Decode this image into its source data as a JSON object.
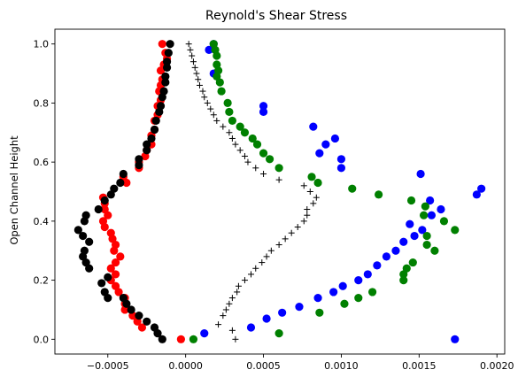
{
  "chart_data": {
    "type": "scatter",
    "title": "Reynold's Shear Stress",
    "xlabel": "",
    "ylabel": "Open Channel Height",
    "xlim": [
      -0.00084,
      0.00205
    ],
    "ylim": [
      -0.05,
      1.05
    ],
    "xticks": [
      -0.0005,
      0.0,
      0.0005,
      0.001,
      0.0015,
      0.002
    ],
    "xtick_labels": [
      "−0.0005",
      "0.0000",
      "0.0005",
      "0.0010",
      "0.0015",
      "0.0020"
    ],
    "yticks": [
      0.0,
      0.2,
      0.4,
      0.6,
      0.8,
      1.0
    ],
    "ytick_labels": [
      "0.0",
      "0.2",
      "0.4",
      "0.6",
      "0.8",
      "1.0"
    ],
    "grid": false,
    "legend": "none",
    "series": [
      {
        "color": "#0000ff",
        "marker": "circle",
        "points": [
          [
            0.00173,
            0.0
          ],
          [
            0.00012,
            0.02
          ],
          [
            0.00042,
            0.04
          ],
          [
            0.00052,
            0.07
          ],
          [
            0.00062,
            0.09
          ],
          [
            0.00073,
            0.11
          ],
          [
            0.00085,
            0.14
          ],
          [
            0.00095,
            0.16
          ],
          [
            0.00101,
            0.18
          ],
          [
            0.00111,
            0.2
          ],
          [
            0.00117,
            0.22
          ],
          [
            0.00123,
            0.25
          ],
          [
            0.00129,
            0.28
          ],
          [
            0.00135,
            0.3
          ],
          [
            0.0014,
            0.33
          ],
          [
            0.00147,
            0.35
          ],
          [
            0.00152,
            0.37
          ],
          [
            0.00144,
            0.39
          ],
          [
            0.00158,
            0.42
          ],
          [
            0.00164,
            0.44
          ],
          [
            0.00157,
            0.47
          ],
          [
            0.00187,
            0.49
          ],
          [
            0.0019,
            0.51
          ],
          [
            0.00151,
            0.56
          ],
          [
            0.001,
            0.58
          ],
          [
            0.001,
            0.61
          ],
          [
            0.00086,
            0.63
          ],
          [
            0.0009,
            0.66
          ],
          [
            0.00096,
            0.68
          ],
          [
            0.00082,
            0.72
          ],
          [
            0.0005,
            0.77
          ],
          [
            0.0005,
            0.79
          ],
          [
            0.00018,
            0.9
          ],
          [
            0.00015,
            0.98
          ],
          [
            0.00018,
            1.0
          ]
        ]
      },
      {
        "color": "#008000",
        "marker": "circle",
        "points": [
          [
            5e-05,
            0.0
          ],
          [
            0.0006,
            0.02
          ],
          [
            0.00086,
            0.09
          ],
          [
            0.00102,
            0.12
          ],
          [
            0.00111,
            0.14
          ],
          [
            0.0012,
            0.16
          ],
          [
            0.0014,
            0.2
          ],
          [
            0.0014,
            0.22
          ],
          [
            0.00142,
            0.24
          ],
          [
            0.00146,
            0.26
          ],
          [
            0.0016,
            0.3
          ],
          [
            0.00155,
            0.32
          ],
          [
            0.00155,
            0.35
          ],
          [
            0.00173,
            0.37
          ],
          [
            0.00166,
            0.4
          ],
          [
            0.00153,
            0.42
          ],
          [
            0.00154,
            0.45
          ],
          [
            0.00145,
            0.47
          ],
          [
            0.00124,
            0.49
          ],
          [
            0.00107,
            0.51
          ],
          [
            0.00085,
            0.53
          ],
          [
            0.00081,
            0.55
          ],
          [
            0.0006,
            0.58
          ],
          [
            0.00054,
            0.61
          ],
          [
            0.0005,
            0.63
          ],
          [
            0.00046,
            0.66
          ],
          [
            0.00043,
            0.68
          ],
          [
            0.00038,
            0.7
          ],
          [
            0.00035,
            0.72
          ],
          [
            0.0003,
            0.74
          ],
          [
            0.00028,
            0.77
          ],
          [
            0.00027,
            0.8
          ],
          [
            0.00023,
            0.84
          ],
          [
            0.00022,
            0.87
          ],
          [
            0.0002,
            0.89
          ],
          [
            0.00021,
            0.91
          ],
          [
            0.0002,
            0.93
          ],
          [
            0.0002,
            0.96
          ],
          [
            0.00019,
            0.98
          ],
          [
            0.00018,
            1.0
          ]
        ]
      },
      {
        "color": "#ff0000",
        "marker": "circle",
        "points": [
          [
            -3e-05,
            0.0
          ],
          [
            -0.00028,
            0.04
          ],
          [
            -0.00031,
            0.06
          ],
          [
            -0.00034,
            0.08
          ],
          [
            -0.00039,
            0.1
          ],
          [
            -0.00039,
            0.12
          ],
          [
            -0.00039,
            0.14
          ],
          [
            -0.00043,
            0.16
          ],
          [
            -0.00045,
            0.18
          ],
          [
            -0.00048,
            0.2
          ],
          [
            -0.00045,
            0.22
          ],
          [
            -0.00048,
            0.24
          ],
          [
            -0.00045,
            0.26
          ],
          [
            -0.00042,
            0.28
          ],
          [
            -0.00046,
            0.3
          ],
          [
            -0.00045,
            0.32
          ],
          [
            -0.00047,
            0.34
          ],
          [
            -0.00048,
            0.36
          ],
          [
            -0.00052,
            0.38
          ],
          [
            -0.00053,
            0.4
          ],
          [
            -0.0005,
            0.42
          ],
          [
            -0.00052,
            0.44
          ],
          [
            -0.00052,
            0.46
          ],
          [
            -0.00053,
            0.48
          ],
          [
            -0.00038,
            0.53
          ],
          [
            -0.0004,
            0.55
          ],
          [
            -0.0003,
            0.58
          ],
          [
            -0.0003,
            0.6
          ],
          [
            -0.00026,
            0.62
          ],
          [
            -0.00025,
            0.64
          ],
          [
            -0.00022,
            0.66
          ],
          [
            -0.00022,
            0.69
          ],
          [
            -0.0002,
            0.71
          ],
          [
            -0.0002,
            0.74
          ],
          [
            -0.00018,
            0.76
          ],
          [
            -0.00018,
            0.79
          ],
          [
            -0.00016,
            0.81
          ],
          [
            -0.00017,
            0.84
          ],
          [
            -0.00016,
            0.86
          ],
          [
            -0.00015,
            0.88
          ],
          [
            -0.00016,
            0.91
          ],
          [
            -0.00014,
            0.93
          ],
          [
            -0.00012,
            0.95
          ],
          [
            -0.00013,
            0.97
          ],
          [
            -0.00015,
            1.0
          ]
        ]
      },
      {
        "color": "#000000",
        "marker": "circle",
        "points": [
          [
            -0.00015,
            0.0
          ],
          [
            -0.00018,
            0.02
          ],
          [
            -0.0002,
            0.04
          ],
          [
            -0.00025,
            0.06
          ],
          [
            -0.0003,
            0.08
          ],
          [
            -0.00035,
            0.1
          ],
          [
            -0.00038,
            0.12
          ],
          [
            -0.0004,
            0.14
          ],
          [
            -0.0005,
            0.14
          ],
          [
            -0.00052,
            0.16
          ],
          [
            -0.00054,
            0.19
          ],
          [
            -0.0005,
            0.21
          ],
          [
            -0.00062,
            0.24
          ],
          [
            -0.00064,
            0.26
          ],
          [
            -0.00066,
            0.28
          ],
          [
            -0.00065,
            0.3
          ],
          [
            -0.00062,
            0.33
          ],
          [
            -0.00066,
            0.35
          ],
          [
            -0.00069,
            0.37
          ],
          [
            -0.00065,
            0.4
          ],
          [
            -0.00064,
            0.42
          ],
          [
            -0.00056,
            0.44
          ],
          [
            -0.00052,
            0.47
          ],
          [
            -0.00048,
            0.49
          ],
          [
            -0.00046,
            0.51
          ],
          [
            -0.00042,
            0.53
          ],
          [
            -0.0004,
            0.56
          ],
          [
            -0.0003,
            0.59
          ],
          [
            -0.0003,
            0.61
          ],
          [
            -0.00025,
            0.64
          ],
          [
            -0.00025,
            0.66
          ],
          [
            -0.00022,
            0.68
          ],
          [
            -0.0002,
            0.71
          ],
          [
            -0.00019,
            0.74
          ],
          [
            -0.00017,
            0.77
          ],
          [
            -0.00016,
            0.79
          ],
          [
            -0.00015,
            0.82
          ],
          [
            -0.00014,
            0.84
          ],
          [
            -0.00013,
            0.87
          ],
          [
            -0.00013,
            0.89
          ],
          [
            -0.00012,
            0.92
          ],
          [
            -0.00012,
            0.94
          ],
          [
            -0.00011,
            0.97
          ],
          [
            -0.0001,
            1.0
          ]
        ]
      },
      {
        "color": "#000000",
        "marker": "plus",
        "points": [
          [
            0.00032,
            0.0
          ],
          [
            0.0003,
            0.03
          ],
          [
            0.00021,
            0.05
          ],
          [
            0.00024,
            0.08
          ],
          [
            0.00026,
            0.1
          ],
          [
            0.00028,
            0.12
          ],
          [
            0.0003,
            0.14
          ],
          [
            0.00033,
            0.16
          ],
          [
            0.00034,
            0.18
          ],
          [
            0.00038,
            0.2
          ],
          [
            0.00042,
            0.22
          ],
          [
            0.00045,
            0.24
          ],
          [
            0.00049,
            0.26
          ],
          [
            0.00052,
            0.28
          ],
          [
            0.00055,
            0.3
          ],
          [
            0.0006,
            0.32
          ],
          [
            0.00064,
            0.34
          ],
          [
            0.00068,
            0.36
          ],
          [
            0.00072,
            0.38
          ],
          [
            0.00076,
            0.4
          ],
          [
            0.00078,
            0.42
          ],
          [
            0.00078,
            0.44
          ],
          [
            0.00082,
            0.46
          ],
          [
            0.00084,
            0.48
          ],
          [
            0.0008,
            0.5
          ],
          [
            0.00076,
            0.52
          ],
          [
            0.0006,
            0.54
          ],
          [
            0.0005,
            0.56
          ],
          [
            0.00045,
            0.58
          ],
          [
            0.0004,
            0.6
          ],
          [
            0.00038,
            0.62
          ],
          [
            0.00035,
            0.64
          ],
          [
            0.00032,
            0.66
          ],
          [
            0.0003,
            0.68
          ],
          [
            0.00028,
            0.7
          ],
          [
            0.00024,
            0.72
          ],
          [
            0.0002,
            0.74
          ],
          [
            0.00018,
            0.76
          ],
          [
            0.00016,
            0.78
          ],
          [
            0.00014,
            0.8
          ],
          [
            0.00012,
            0.82
          ],
          [
            0.00011,
            0.84
          ],
          [
            9e-05,
            0.86
          ],
          [
            8e-05,
            0.88
          ],
          [
            7e-05,
            0.9
          ],
          [
            6e-05,
            0.92
          ],
          [
            5e-05,
            0.94
          ],
          [
            4e-05,
            0.96
          ],
          [
            3e-05,
            0.98
          ],
          [
            2e-05,
            1.0
          ]
        ]
      }
    ]
  }
}
